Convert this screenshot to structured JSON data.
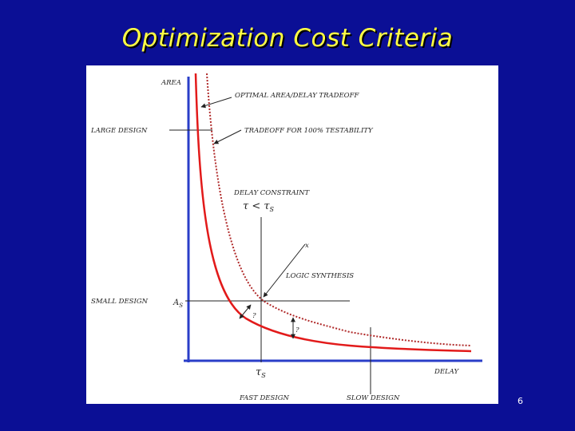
{
  "slide": {
    "title": "Optimization Cost Criteria",
    "page_number": "6"
  },
  "diagram": {
    "axis_y_label": "AREA",
    "axis_x_label": "DELAY",
    "optimal_tradeoff_label": "OPTIMAL AREA/DELAY TRADEOFF",
    "testability_tradeoff_label": "TRADEOFF FOR 100% TESTABILITY",
    "large_design_label": "LARGE DESIGN",
    "small_design_label": "SMALL DESIGN",
    "delay_constraint_label": "DELAY CONSTRAINT",
    "constraint_expr": "τ < τ",
    "constraint_sub": "S",
    "logic_synthesis_label": "LOGIC SYNTHESIS",
    "area_s_label": "A",
    "area_s_sub": "S",
    "tau_s_label": "τ",
    "tau_s_sub": "S",
    "question_1": "?",
    "question_2": "?",
    "point_marker": "x",
    "fast_design_label": "FAST DESIGN",
    "slow_design_label": "SLOW DESIGN",
    "colors": {
      "axis": "#2a3ec8",
      "optimal_curve": "#e21a1a",
      "testability_curve": "#b02a2a",
      "guide_lines": "#222222"
    }
  }
}
